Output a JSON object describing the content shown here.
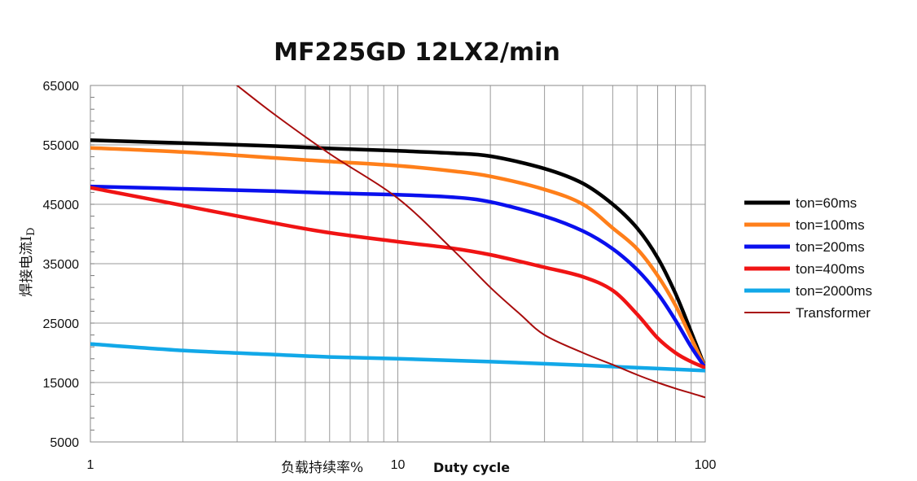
{
  "chart_data": {
    "type": "line",
    "title": "MF225GD 12LX2/min",
    "xlabel_cn": "负载持续率%",
    "xlabel_en": "Duty cycle",
    "ylabel": "焊接电流I",
    "ylabel_sub": "D",
    "xscale": "log",
    "xlim": [
      1,
      100
    ],
    "ylim": [
      5000,
      65000
    ],
    "xticks": [
      "1",
      "10",
      "100"
    ],
    "yticks": [
      "5000",
      "15000",
      "25000",
      "35000",
      "45000",
      "55000",
      "65000"
    ],
    "grid": true,
    "legend_position": "right",
    "series": [
      {
        "name": "ton=60ms",
        "color": "#000000",
        "points": [
          [
            1,
            55800
          ],
          [
            2,
            55300
          ],
          [
            4,
            54800
          ],
          [
            6,
            54400
          ],
          [
            10,
            54000
          ],
          [
            15,
            53600
          ],
          [
            20,
            53100
          ],
          [
            30,
            51000
          ],
          [
            40,
            48500
          ],
          [
            50,
            45000
          ],
          [
            60,
            41000
          ],
          [
            70,
            36000
          ],
          [
            80,
            30000
          ],
          [
            90,
            23500
          ],
          [
            100,
            17500
          ]
        ]
      },
      {
        "name": "ton=100ms",
        "color": "#FF7F1A",
        "points": [
          [
            1,
            54500
          ],
          [
            2,
            53800
          ],
          [
            4,
            52800
          ],
          [
            6,
            52200
          ],
          [
            10,
            51500
          ],
          [
            15,
            50600
          ],
          [
            20,
            49700
          ],
          [
            30,
            47500
          ],
          [
            40,
            45000
          ],
          [
            50,
            41000
          ],
          [
            60,
            37500
          ],
          [
            70,
            33000
          ],
          [
            80,
            28000
          ],
          [
            90,
            22500
          ],
          [
            100,
            17500
          ]
        ]
      },
      {
        "name": "ton=200ms",
        "color": "#0A10EE",
        "points": [
          [
            1,
            48000
          ],
          [
            2,
            47600
          ],
          [
            4,
            47200
          ],
          [
            6,
            46900
          ],
          [
            10,
            46600
          ],
          [
            15,
            46200
          ],
          [
            20,
            45400
          ],
          [
            30,
            43000
          ],
          [
            40,
            40500
          ],
          [
            50,
            37500
          ],
          [
            60,
            34000
          ],
          [
            70,
            30000
          ],
          [
            80,
            25500
          ],
          [
            90,
            21000
          ],
          [
            100,
            17500
          ]
        ]
      },
      {
        "name": "ton=400ms",
        "color": "#F01414",
        "points": [
          [
            1,
            47800
          ],
          [
            2,
            44800
          ],
          [
            4,
            41800
          ],
          [
            6,
            40200
          ],
          [
            10,
            38700
          ],
          [
            15,
            37600
          ],
          [
            20,
            36500
          ],
          [
            30,
            34400
          ],
          [
            40,
            32800
          ],
          [
            50,
            30500
          ],
          [
            60,
            26500
          ],
          [
            70,
            22500
          ],
          [
            80,
            20000
          ],
          [
            90,
            18500
          ],
          [
            100,
            17500
          ]
        ]
      },
      {
        "name": "ton=2000ms",
        "color": "#12A8E8",
        "points": [
          [
            1,
            21500
          ],
          [
            2,
            20400
          ],
          [
            4,
            19700
          ],
          [
            6,
            19300
          ],
          [
            10,
            19000
          ],
          [
            20,
            18500
          ],
          [
            40,
            17900
          ],
          [
            60,
            17500
          ],
          [
            100,
            17000
          ]
        ]
      },
      {
        "name": "Transformer",
        "color": "#A80C0C",
        "points": [
          [
            3,
            65000
          ],
          [
            4,
            60000
          ],
          [
            6,
            53500
          ],
          [
            10,
            46000
          ],
          [
            15,
            37500
          ],
          [
            20,
            31000
          ],
          [
            25,
            26500
          ],
          [
            30,
            23000
          ],
          [
            40,
            20000
          ],
          [
            50,
            18000
          ],
          [
            60,
            16300
          ],
          [
            70,
            15000
          ],
          [
            80,
            14000
          ],
          [
            90,
            13200
          ],
          [
            100,
            12500
          ]
        ]
      }
    ]
  }
}
